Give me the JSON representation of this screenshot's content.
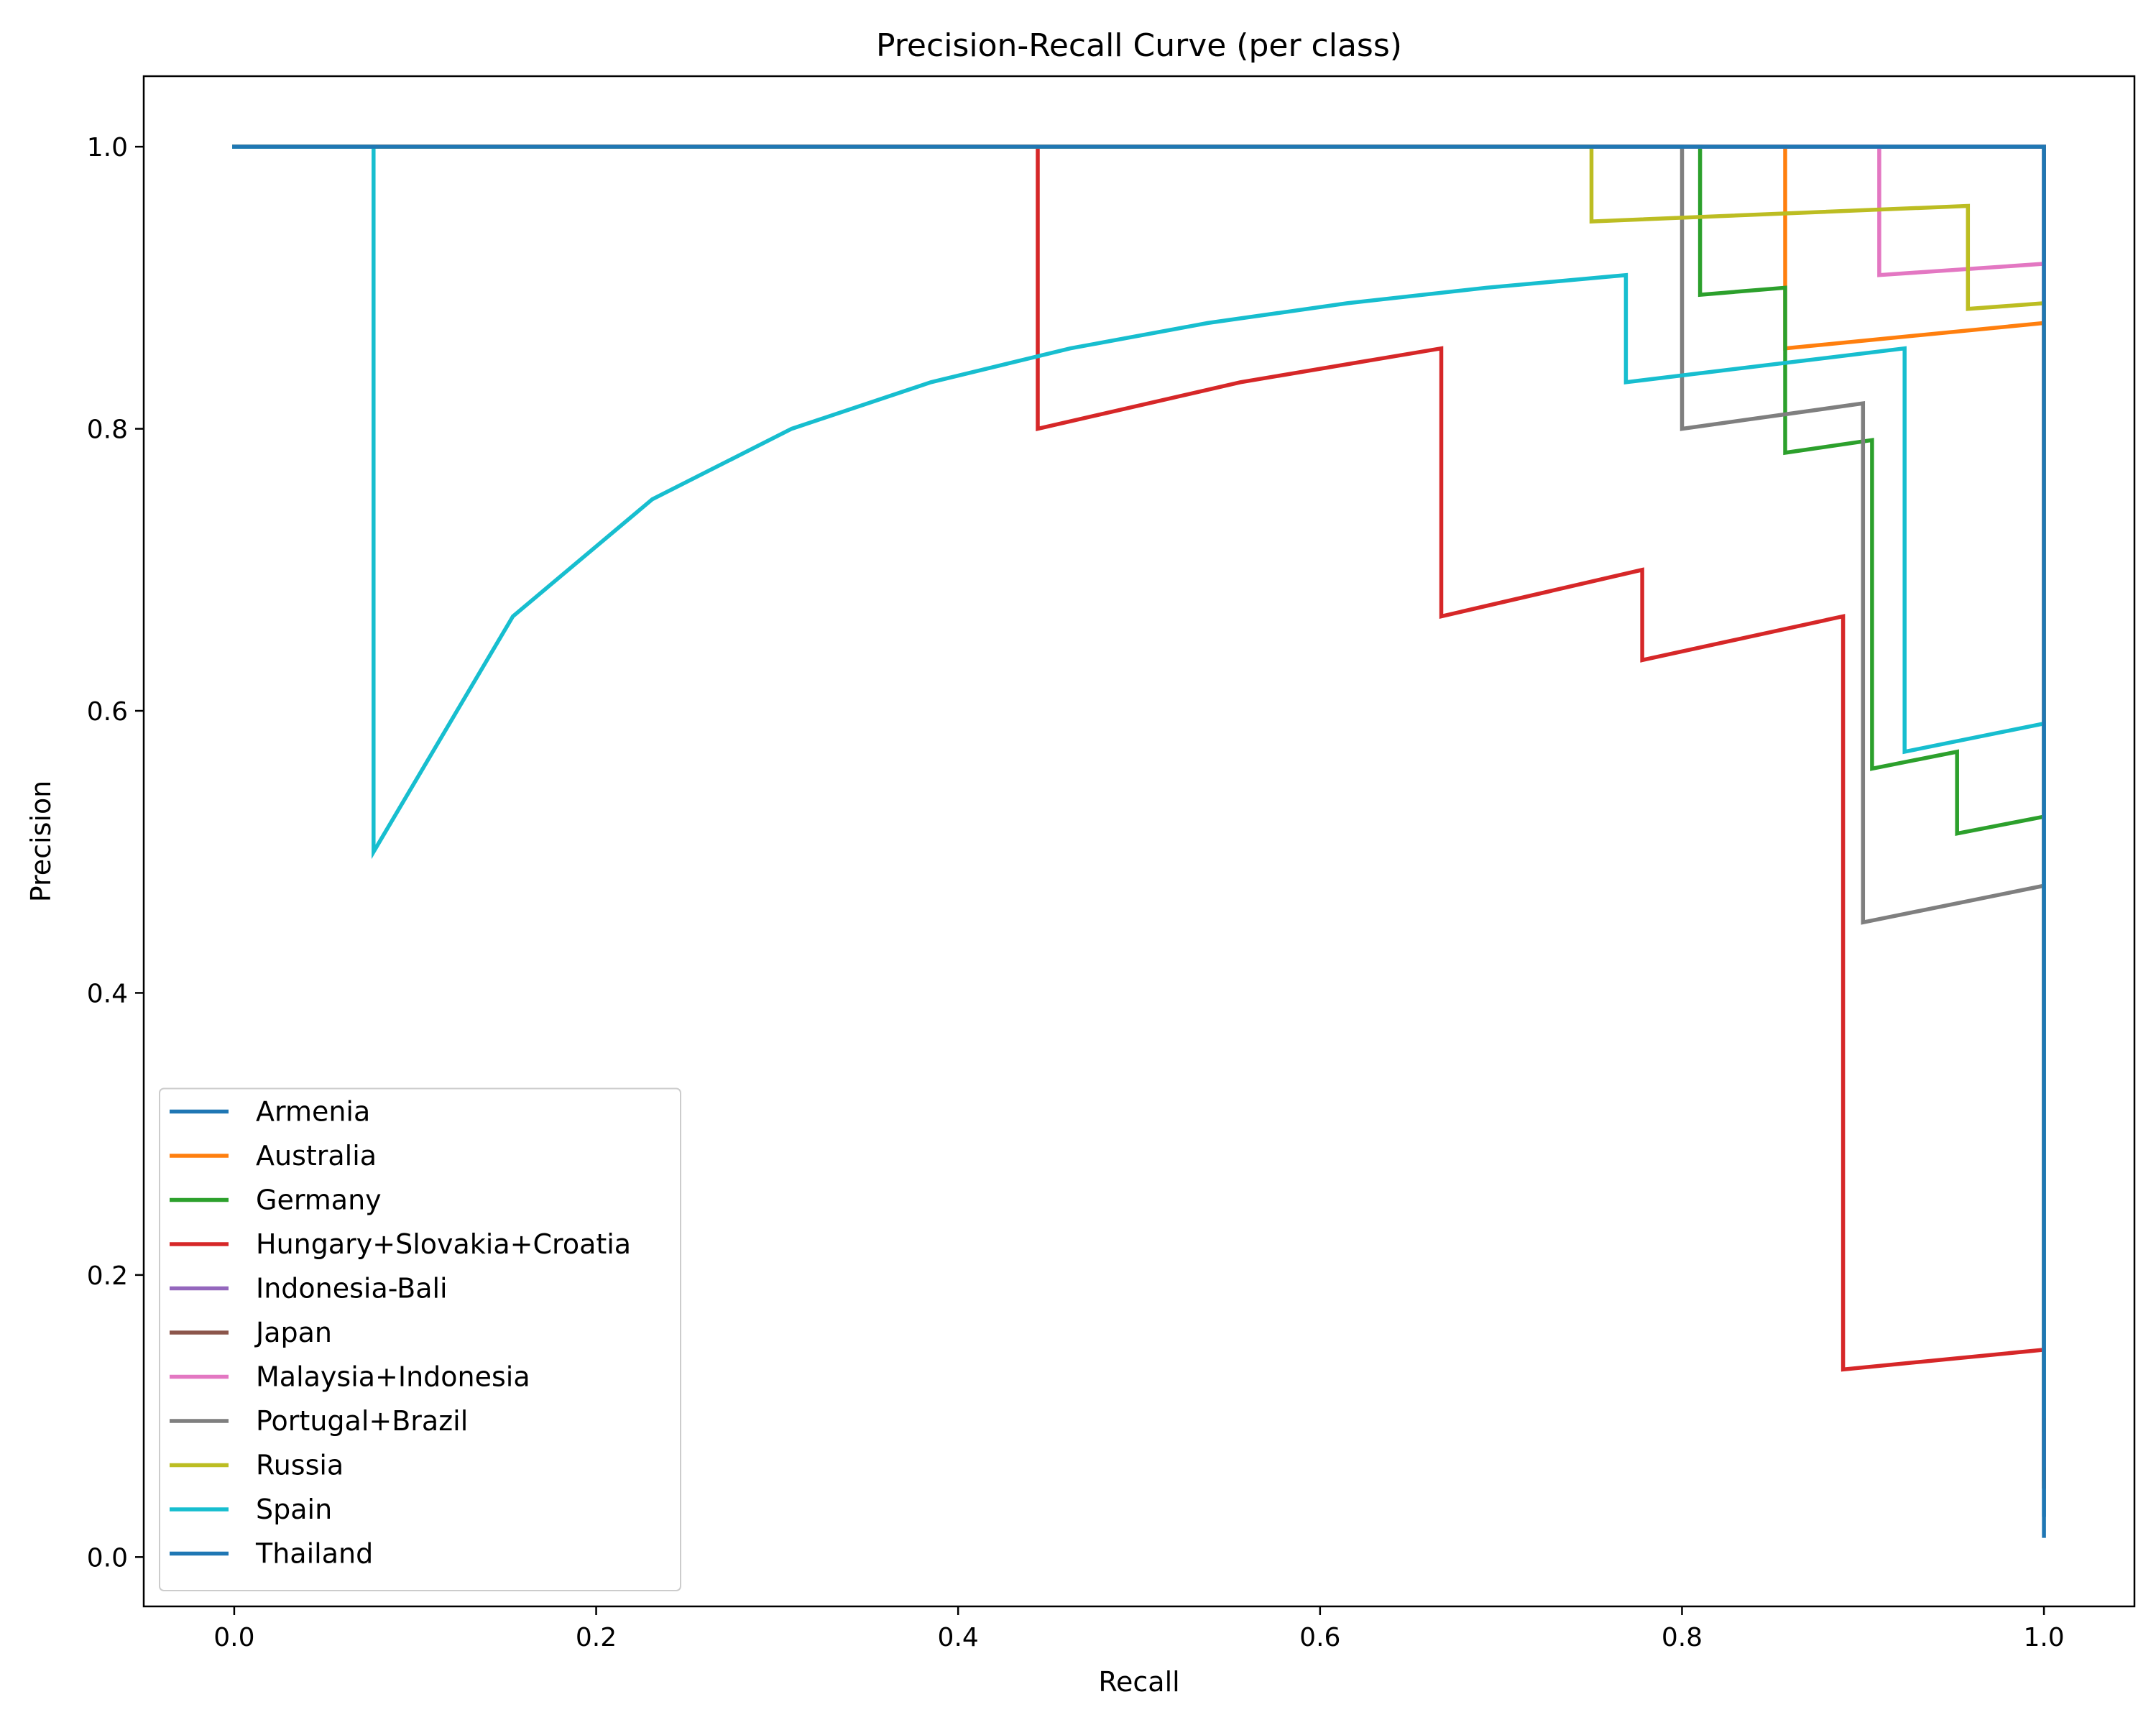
{
  "chart_data": {
    "type": "line",
    "title": "Precision-Recall Curve (per class)",
    "xlabel": "Recall",
    "ylabel": "Precision",
    "xlim": [
      -0.05,
      1.05
    ],
    "ylim": [
      -0.035,
      1.05
    ],
    "xticks": [
      0.0,
      0.2,
      0.4,
      0.6,
      0.8,
      1.0
    ],
    "yticks": [
      0.0,
      0.2,
      0.4,
      0.6,
      0.8,
      1.0
    ],
    "xtick_labels": [
      "0.0",
      "0.2",
      "0.4",
      "0.6",
      "0.8",
      "1.0"
    ],
    "ytick_labels": [
      "0.0",
      "0.2",
      "0.4",
      "0.6",
      "0.8",
      "1.0"
    ],
    "grid": false,
    "legend_position": "lower left",
    "series": [
      {
        "name": "Armenia",
        "color": "#1f77b4",
        "points": [
          [
            0,
            1
          ],
          [
            1,
            1
          ],
          [
            1,
            0.03
          ]
        ]
      },
      {
        "name": "Australia",
        "color": "#ff7f0e",
        "points": [
          [
            0,
            1
          ],
          [
            0.857,
            1
          ],
          [
            0.857,
            0.857
          ],
          [
            1,
            0.875
          ],
          [
            1,
            0.055
          ]
        ]
      },
      {
        "name": "Germany",
        "color": "#2ca02c",
        "points": [
          [
            0,
            1
          ],
          [
            0.81,
            1
          ],
          [
            0.81,
            0.895
          ],
          [
            0.857,
            0.9
          ],
          [
            0.857,
            0.783
          ],
          [
            0.905,
            0.792
          ],
          [
            0.905,
            0.559
          ],
          [
            0.952,
            0.571
          ],
          [
            0.952,
            0.513
          ],
          [
            1,
            0.525
          ],
          [
            1,
            0.05
          ]
        ]
      },
      {
        "name": "Hungary+Slovakia+Croatia",
        "color": "#d62728",
        "points": [
          [
            0,
            1
          ],
          [
            0.444,
            1
          ],
          [
            0.444,
            0.8
          ],
          [
            0.556,
            0.833
          ],
          [
            0.667,
            0.857
          ],
          [
            0.667,
            0.667
          ],
          [
            0.778,
            0.7
          ],
          [
            0.778,
            0.636
          ],
          [
            0.889,
            0.667
          ],
          [
            0.889,
            0.133
          ],
          [
            1,
            0.147
          ],
          [
            1,
            0.05
          ]
        ]
      },
      {
        "name": "Indonesia-Bali",
        "color": "#9467bd",
        "points": [
          [
            0,
            1
          ],
          [
            1,
            1
          ],
          [
            1,
            0.065
          ]
        ]
      },
      {
        "name": "Japan",
        "color": "#8c564b",
        "points": [
          [
            0,
            1
          ],
          [
            1,
            1
          ],
          [
            1,
            0.09
          ]
        ]
      },
      {
        "name": "Malaysia+Indonesia",
        "color": "#e377c2",
        "points": [
          [
            0,
            1
          ],
          [
            0.909,
            1
          ],
          [
            0.909,
            0.909
          ],
          [
            1,
            0.917
          ],
          [
            1,
            0.1
          ]
        ]
      },
      {
        "name": "Portugal+Brazil",
        "color": "#7f7f7f",
        "points": [
          [
            0,
            1
          ],
          [
            0.8,
            1
          ],
          [
            0.8,
            0.8
          ],
          [
            0.9,
            0.818
          ],
          [
            0.9,
            0.45
          ],
          [
            1,
            0.476
          ],
          [
            1,
            0.09
          ]
        ]
      },
      {
        "name": "Russia",
        "color": "#bcbd22",
        "points": [
          [
            0,
            1
          ],
          [
            0.75,
            1
          ],
          [
            0.75,
            0.947
          ],
          [
            0.958,
            0.958
          ],
          [
            0.958,
            0.885
          ],
          [
            1,
            0.889
          ],
          [
            1,
            0.12
          ]
        ]
      },
      {
        "name": "Spain",
        "color": "#17becf",
        "points": [
          [
            0,
            1
          ],
          [
            0.077,
            1
          ],
          [
            0.077,
            0.5
          ],
          [
            0.154,
            0.667
          ],
          [
            0.231,
            0.75
          ],
          [
            0.308,
            0.8
          ],
          [
            0.385,
            0.833
          ],
          [
            0.462,
            0.857
          ],
          [
            0.538,
            0.875
          ],
          [
            0.615,
            0.889
          ],
          [
            0.692,
            0.9
          ],
          [
            0.769,
            0.909
          ],
          [
            0.769,
            0.833
          ],
          [
            0.923,
            0.857
          ],
          [
            0.923,
            0.571
          ],
          [
            1,
            0.591
          ],
          [
            1,
            0.1
          ]
        ]
      },
      {
        "name": "Thailand",
        "color": "#1f77b4",
        "points": [
          [
            0,
            1
          ],
          [
            1,
            1
          ],
          [
            1,
            0.015
          ]
        ]
      }
    ]
  }
}
